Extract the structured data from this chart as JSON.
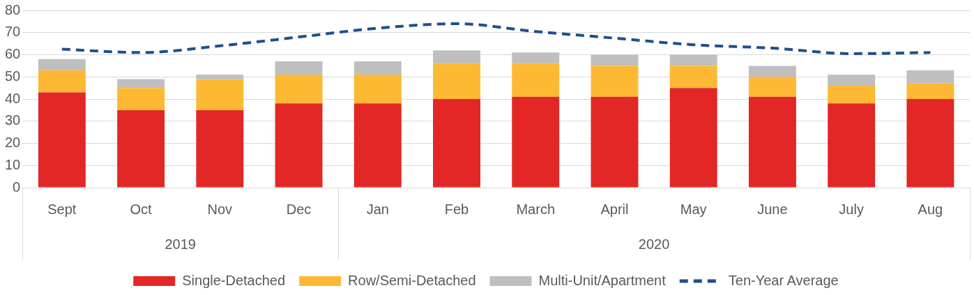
{
  "chart_data": {
    "type": "bar",
    "stacked": true,
    "x": [
      "2019-09",
      "2019-10",
      "2019-11",
      "2019-12",
      "2020-01",
      "2020-02",
      "2020-03",
      "2020-04",
      "2020-05",
      "2020-06",
      "2020-07",
      "2020-08"
    ],
    "xticks": [
      {
        "value": "2019-09",
        "label": "Sept"
      },
      {
        "value": "2019-10",
        "label": "Oct"
      },
      {
        "value": "2019-11",
        "label": "Nov"
      },
      {
        "value": "2019-12",
        "label": "Dec"
      },
      {
        "value": "2020-01",
        "label": "Jan"
      },
      {
        "value": "2020-02",
        "label": "Feb"
      },
      {
        "value": "2020-03",
        "label": "March"
      },
      {
        "value": "2020-04",
        "label": "April"
      },
      {
        "value": "2020-05",
        "label": "May"
      },
      {
        "value": "2020-06",
        "label": "June"
      },
      {
        "value": "2020-07",
        "label": "July"
      },
      {
        "value": "2020-08",
        "label": "Aug"
      }
    ],
    "series": [
      {
        "name": "Single-Detached",
        "color": "#e32726",
        "values": [
          43,
          35,
          35,
          38,
          38,
          40,
          41,
          41,
          45,
          41,
          38,
          40
        ]
      },
      {
        "name": "Row/Semi-Detached",
        "color": "#fdb933",
        "values": [
          10,
          10,
          14,
          13,
          13,
          16,
          15,
          14,
          10,
          9,
          8,
          7
        ]
      },
      {
        "name": "Multi-Unit/Apartment",
        "color": "#bfbfbf",
        "values": [
          5,
          4,
          2,
          6,
          6,
          6,
          5,
          5,
          5,
          5,
          5,
          6
        ]
      },
      {
        "name": "Ten-Year Average",
        "type": "line",
        "color": "#1f4e8c",
        "line_style": "dashed",
        "values": [
          62.5,
          61,
          64,
          68,
          72,
          74,
          70.5,
          67.5,
          64.5,
          63,
          60.5,
          61
        ]
      }
    ],
    "annotations": [
      "2019",
      "2020"
    ],
    "xlim": [
      "2019-08-16",
      "2020-08-16"
    ],
    "ylim": [
      0,
      80
    ],
    "yticks": [
      0,
      10,
      20,
      30,
      40,
      50,
      60,
      70,
      80
    ],
    "grid": "y",
    "legend": "bottom",
    "marker": "none"
  }
}
